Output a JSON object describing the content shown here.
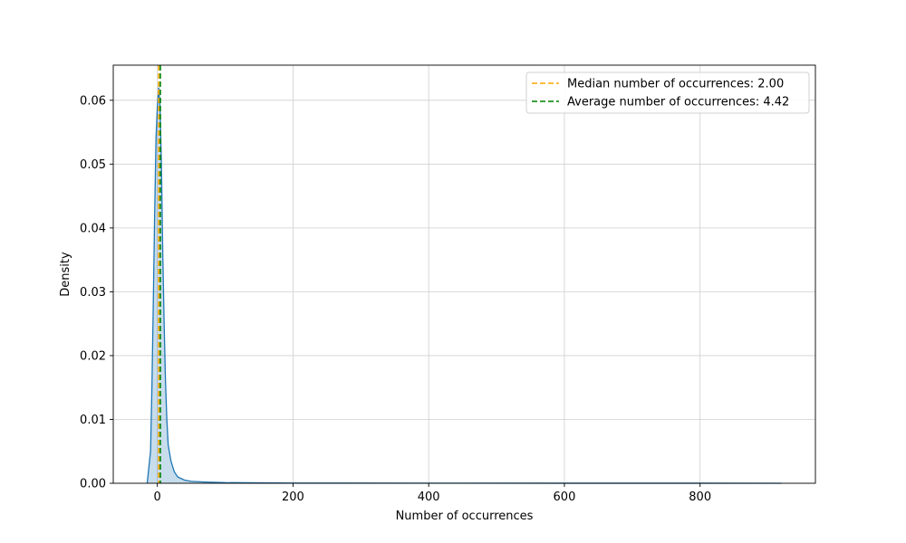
{
  "chart_data": {
    "type": "area",
    "title": "",
    "xlabel": "Number of occurrences",
    "ylabel": "Density",
    "xlim": [
      -65,
      970
    ],
    "ylim": [
      0,
      0.0655
    ],
    "x_ticks": [
      0,
      200,
      400,
      600,
      800
    ],
    "y_ticks": [
      0.0,
      0.01,
      0.02,
      0.03,
      0.04,
      0.05,
      0.06
    ],
    "x_tick_labels": [
      "0",
      "200",
      "400",
      "600",
      "800"
    ],
    "y_tick_labels": [
      "0.00",
      "0.01",
      "0.02",
      "0.03",
      "0.04",
      "0.05",
      "0.06"
    ],
    "grid": true,
    "legend_position": "top-right",
    "series": [
      {
        "type": "kde",
        "color": "#1f77b4",
        "fill": true,
        "points": [
          [
            -15,
            0.0
          ],
          [
            -10,
            0.005
          ],
          [
            -8,
            0.015
          ],
          [
            -6,
            0.028
          ],
          [
            -4,
            0.042
          ],
          [
            -2,
            0.054
          ],
          [
            0,
            0.059
          ],
          [
            2,
            0.062
          ],
          [
            4,
            0.059
          ],
          [
            6,
            0.05
          ],
          [
            8,
            0.036
          ],
          [
            10,
            0.025
          ],
          [
            12,
            0.016
          ],
          [
            14,
            0.01
          ],
          [
            16,
            0.006
          ],
          [
            20,
            0.0035
          ],
          [
            25,
            0.0018
          ],
          [
            30,
            0.001
          ],
          [
            40,
            0.0005
          ],
          [
            50,
            0.0003
          ],
          [
            70,
            0.0002
          ],
          [
            100,
            0.0001
          ],
          [
            150,
            6e-05
          ],
          [
            200,
            4e-05
          ],
          [
            400,
            2e-05
          ],
          [
            600,
            1e-05
          ],
          [
            800,
            5e-06
          ],
          [
            920,
            0.0
          ]
        ]
      }
    ],
    "reference_lines": [
      {
        "name": "Median number of occurrences: 2.00",
        "x": 2.0,
        "color": "#ffa500",
        "style": "dashed"
      },
      {
        "name": "Average number of occurrences: 4.42",
        "x": 4.42,
        "color": "#008000",
        "style": "dashed"
      }
    ]
  }
}
